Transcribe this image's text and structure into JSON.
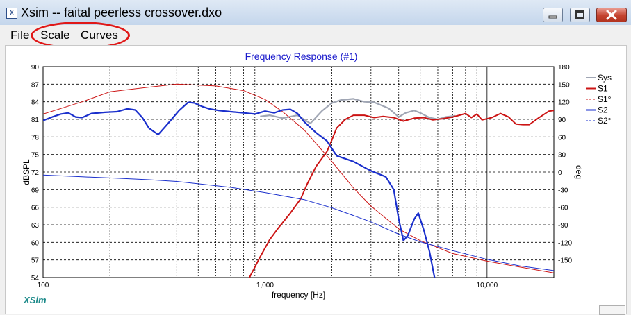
{
  "window": {
    "title": "Xsim -- faital peerless crossover.dxo",
    "icon": "xsim-app-icon",
    "controls": [
      "minimize-icon",
      "maximize-icon",
      "close-icon"
    ]
  },
  "menu": {
    "items": [
      "File",
      "Scale",
      "Curves"
    ]
  },
  "annotation": {
    "type": "red-ellipse",
    "marks": "Scale and Curves menus"
  },
  "colors": {
    "sys": "#a0a6b4",
    "s1": "#cc1414",
    "s2": "#1a2fcc",
    "title": "#1a1acc",
    "axis": "#000000",
    "grid": "#000000"
  },
  "chart_data": {
    "type": "line",
    "title": "Frequency Response (#1)",
    "xlabel": "frequency [Hz]",
    "ylabel_left": "dBSPL",
    "ylabel_right": "deg",
    "xscale": "log",
    "xlim": [
      100,
      20000
    ],
    "ylim_left": [
      54,
      90
    ],
    "ylim_right": [
      -180,
      180
    ],
    "x_ticks": [
      "100",
      "1,000",
      "10,000"
    ],
    "left_ticks": [
      "90",
      "87",
      "84",
      "81",
      "78",
      "75",
      "72",
      "69",
      "66",
      "63",
      "60",
      "57",
      "54"
    ],
    "right_ticks": [
      "180",
      "150",
      "120",
      "90",
      "60",
      "30",
      "0",
      "-30",
      "-60",
      "-90",
      "-120",
      "-150"
    ],
    "grid": true,
    "legend_position": "right",
    "watermark": "XSim",
    "legend": [
      {
        "name": "Sys",
        "style": "solid",
        "color": "#a0a6b4"
      },
      {
        "name": "S1",
        "style": "solid",
        "color": "#cc1414"
      },
      {
        "name": "S1°",
        "style": "dashed",
        "color": "#cc1414"
      },
      {
        "name": "S2",
        "style": "solid",
        "color": "#1a2fcc"
      },
      {
        "name": "S2°",
        "style": "dashed",
        "color": "#1a2fcc"
      }
    ],
    "series": [
      {
        "name": "Sys",
        "axis": "left",
        "width": 2.2,
        "color": "#a0a6b4",
        "points": [
          [
            950,
            81.5
          ],
          [
            1050,
            81.7
          ],
          [
            1200,
            81.2
          ],
          [
            1400,
            81.7
          ],
          [
            1600,
            80.3
          ],
          [
            1800,
            82.4
          ],
          [
            2000,
            83.8
          ],
          [
            2200,
            84.3
          ],
          [
            2500,
            84.5
          ],
          [
            2800,
            84.0
          ],
          [
            3100,
            83.9
          ],
          [
            3600,
            82.9
          ],
          [
            4000,
            81.4
          ],
          [
            4300,
            82.1
          ],
          [
            4700,
            82.5
          ],
          [
            5000,
            82.1
          ],
          [
            5500,
            81.3
          ],
          [
            6000,
            81.0
          ],
          [
            6500,
            81.4
          ],
          [
            7200,
            81.6
          ]
        ]
      },
      {
        "name": "S1",
        "axis": "left",
        "width": 2,
        "color": "#cc1414",
        "points": [
          [
            850,
            54
          ],
          [
            950,
            57.5
          ],
          [
            1050,
            60.5
          ],
          [
            1150,
            62.5
          ],
          [
            1300,
            65
          ],
          [
            1450,
            67.5
          ],
          [
            1550,
            70
          ],
          [
            1700,
            73
          ],
          [
            1900,
            75.5
          ],
          [
            2000,
            77.5
          ],
          [
            2100,
            79.5
          ],
          [
            2300,
            81
          ],
          [
            2500,
            81.7
          ],
          [
            2800,
            81.7
          ],
          [
            3100,
            81.3
          ],
          [
            3400,
            81.5
          ],
          [
            3800,
            81.3
          ],
          [
            4200,
            80.7
          ],
          [
            4700,
            81.2
          ],
          [
            5200,
            81.3
          ],
          [
            5700,
            80.9
          ],
          [
            6300,
            81.1
          ],
          [
            7000,
            81.4
          ],
          [
            7500,
            81.7
          ],
          [
            8000,
            82
          ],
          [
            8500,
            81.3
          ],
          [
            9000,
            81.9
          ],
          [
            9500,
            80.9
          ],
          [
            10500,
            81.3
          ],
          [
            11500,
            82
          ],
          [
            12500,
            81.4
          ],
          [
            13500,
            80.2
          ],
          [
            14500,
            80.1
          ],
          [
            15500,
            80.1
          ],
          [
            17000,
            81.2
          ],
          [
            19000,
            82.4
          ],
          [
            20000,
            82.5
          ]
        ]
      },
      {
        "name": "S1°",
        "axis": "right",
        "width": 1,
        "color": "#cc1414",
        "points": [
          [
            100,
            99
          ],
          [
            150,
            120
          ],
          [
            200,
            137
          ],
          [
            300,
            145
          ],
          [
            400,
            150
          ],
          [
            600,
            147
          ],
          [
            800,
            139
          ],
          [
            1000,
            124
          ],
          [
            1200,
            103
          ],
          [
            1500,
            72
          ],
          [
            2000,
            18
          ],
          [
            2500,
            -27
          ],
          [
            3000,
            -58
          ],
          [
            4000,
            -97
          ],
          [
            5000,
            -117
          ],
          [
            7000,
            -139
          ],
          [
            10000,
            -152
          ],
          [
            14000,
            -162
          ],
          [
            20000,
            -172
          ]
        ]
      },
      {
        "name": "S2",
        "axis": "left",
        "width": 2.2,
        "color": "#1a2fcc",
        "points": [
          [
            100,
            80.8
          ],
          [
            110,
            81.4
          ],
          [
            120,
            81.9
          ],
          [
            130,
            82.1
          ],
          [
            140,
            81.4
          ],
          [
            150,
            81.3
          ],
          [
            165,
            82
          ],
          [
            190,
            82.2
          ],
          [
            215,
            82.3
          ],
          [
            240,
            82.8
          ],
          [
            260,
            82.6
          ],
          [
            280,
            81.3
          ],
          [
            300,
            79.5
          ],
          [
            330,
            78.4
          ],
          [
            360,
            80
          ],
          [
            410,
            82.5
          ],
          [
            450,
            83.9
          ],
          [
            480,
            83.8
          ],
          [
            520,
            83.2
          ],
          [
            560,
            82.8
          ],
          [
            620,
            82.5
          ],
          [
            700,
            82.3
          ],
          [
            800,
            82.1
          ],
          [
            900,
            81.9
          ],
          [
            1000,
            82.4
          ],
          [
            1100,
            82.1
          ],
          [
            1200,
            82.6
          ],
          [
            1300,
            82.7
          ],
          [
            1400,
            82
          ],
          [
            1500,
            80.6
          ],
          [
            1700,
            78.7
          ],
          [
            1900,
            77.3
          ],
          [
            2100,
            74.8
          ],
          [
            2500,
            73.8
          ],
          [
            3000,
            72.2
          ],
          [
            3500,
            71.2
          ],
          [
            3800,
            69
          ],
          [
            4000,
            64
          ],
          [
            4200,
            60.3
          ],
          [
            4400,
            61.2
          ],
          [
            4700,
            64
          ],
          [
            4900,
            65
          ],
          [
            5200,
            62
          ],
          [
            5500,
            58.5
          ],
          [
            5800,
            54
          ]
        ]
      },
      {
        "name": "S2°",
        "axis": "right",
        "width": 1,
        "color": "#1a2fcc",
        "points": [
          [
            100,
            -5
          ],
          [
            150,
            -8
          ],
          [
            200,
            -10
          ],
          [
            300,
            -13
          ],
          [
            400,
            -16
          ],
          [
            500,
            -20
          ],
          [
            700,
            -26
          ],
          [
            1000,
            -35
          ],
          [
            1500,
            -47
          ],
          [
            2000,
            -61
          ],
          [
            3000,
            -85
          ],
          [
            4000,
            -106
          ],
          [
            5000,
            -119
          ],
          [
            7000,
            -134
          ],
          [
            10000,
            -149
          ],
          [
            14000,
            -160
          ],
          [
            20000,
            -168
          ]
        ]
      }
    ]
  }
}
